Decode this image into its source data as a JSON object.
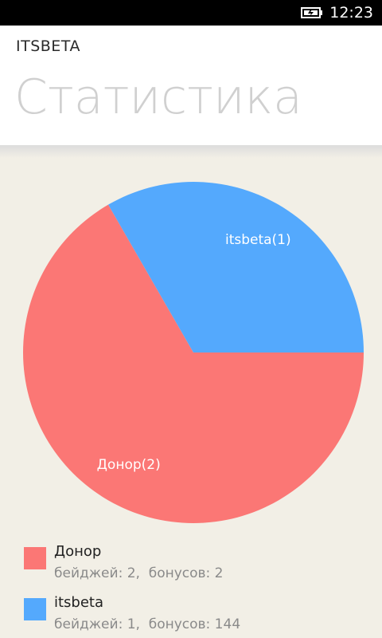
{
  "status_bar": {
    "time": "12:23",
    "battery_icon": "battery-charging-icon"
  },
  "header": {
    "app_title": "ITSBETA",
    "page_title": "Статистика"
  },
  "chart_data": {
    "type": "pie",
    "slices": [
      {
        "label": "Донор(2)",
        "value": 2,
        "color": "#fb7775"
      },
      {
        "label": "itsbeta(1)",
        "value": 1,
        "color": "#54a9fd"
      }
    ]
  },
  "legend": {
    "items": [
      {
        "name": "Донор",
        "stats": "бейджей: 2,  бонусов: 2",
        "color": "#fb7775"
      },
      {
        "name": "itsbeta",
        "stats": "бейджей: 1,  бонусов: 144",
        "color": "#54a9fd"
      }
    ]
  }
}
